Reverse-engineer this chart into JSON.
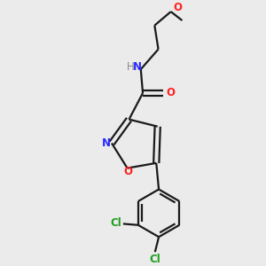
{
  "bg_color": "#ebebeb",
  "bond_color": "#1a1a1a",
  "N_color": "#2828ff",
  "O_color": "#ff2020",
  "Cl_color": "#1e9e1e",
  "H_color": "#888888",
  "line_width": 1.6,
  "figsize": [
    3.0,
    3.0
  ],
  "dpi": 100,
  "xlim": [
    0,
    10
  ],
  "ylim": [
    0,
    10
  ]
}
